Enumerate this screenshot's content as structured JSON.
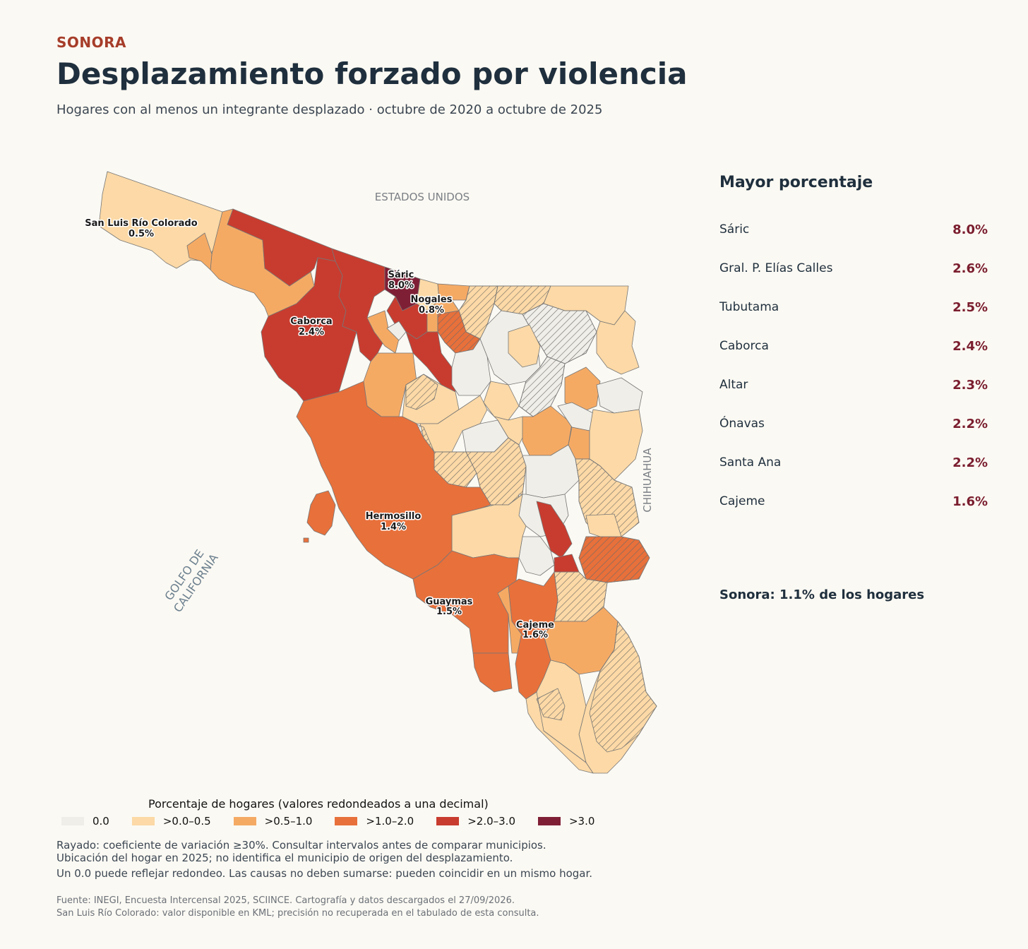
{
  "header": {
    "kicker": "SONORA",
    "title": "Desplazamiento forzado por violencia",
    "subtitle": "Hogares con al menos un integrante desplazado · octubre de 2020 a octubre de 2025"
  },
  "map": {
    "neighbors": {
      "north": "ESTADOS UNIDOS",
      "east": "CHIHUAHUA",
      "gulf_line1": "GOLFO DE",
      "gulf_line2": "CALIFORNIA"
    },
    "labels": [
      {
        "name": "San Luis Río Colorado",
        "value": "0.5%"
      },
      {
        "name": "Sáric",
        "value": "8.0%"
      },
      {
        "name": "Nogales",
        "value": "0.8%"
      },
      {
        "name": "Caborca",
        "value": "2.4%"
      },
      {
        "name": "Hermosillo",
        "value": "1.4%"
      },
      {
        "name": "Guaymas",
        "value": "1.5%"
      },
      {
        "name": "Cajeme",
        "value": "1.6%"
      }
    ],
    "colors": {
      "c0": "#f0eee8",
      "c1": "#fcd9a6",
      "c2": "#f5aa64",
      "c3": "#e8703b",
      "c4": "#c83c2f",
      "c5": "#7f1f36",
      "border": "#777777"
    }
  },
  "panel": {
    "title": "Mayor porcentaje",
    "ranking": [
      {
        "name": "Sáric",
        "value": "8.0%"
      },
      {
        "name": "Gral. P. Elías Calles",
        "value": "2.6%"
      },
      {
        "name": "Tubutama",
        "value": "2.5%"
      },
      {
        "name": "Caborca",
        "value": "2.4%"
      },
      {
        "name": "Altar",
        "value": "2.3%"
      },
      {
        "name": "Ónavas",
        "value": "2.2%"
      },
      {
        "name": "Santa Ana",
        "value": "2.2%"
      },
      {
        "name": "Cajeme",
        "value": "1.6%"
      }
    ],
    "total": "Sonora: 1.1% de los hogares"
  },
  "legend": {
    "title": "Porcentaje de hogares (valores redondeados a una decimal)",
    "items": [
      {
        "label": "0.0",
        "color": "#f0eee8"
      },
      {
        "label": ">0.0–0.5",
        "color": "#fcd9a6"
      },
      {
        "label": ">0.5–1.0",
        "color": "#f5aa64"
      },
      {
        "label": ">1.0–2.0",
        "color": "#e8703b"
      },
      {
        "label": ">2.0–3.0",
        "color": "#c83c2f"
      },
      {
        "label": ">3.0",
        "color": "#7f1f36"
      }
    ]
  },
  "notes": {
    "line1": "Rayado: coeficiente de variación ≥30%. Consultar intervalos antes de comparar municipios.",
    "line2": "Ubicación del hogar en 2025; no identifica el municipio de origen del desplazamiento.",
    "line3": "Un 0.0 puede reflejar redondeo. Las causas no deben sumarse: pueden coincidir en un mismo hogar."
  },
  "source": {
    "line1": "Fuente: INEGI, Encuesta Intercensal 2025, SCIINCE. Cartografía y datos descargados el 27/09/2026.",
    "line2": "San Luis Río Colorado: valor disponible en KML; precisión no recuperada en el tabulado de esta consulta."
  }
}
